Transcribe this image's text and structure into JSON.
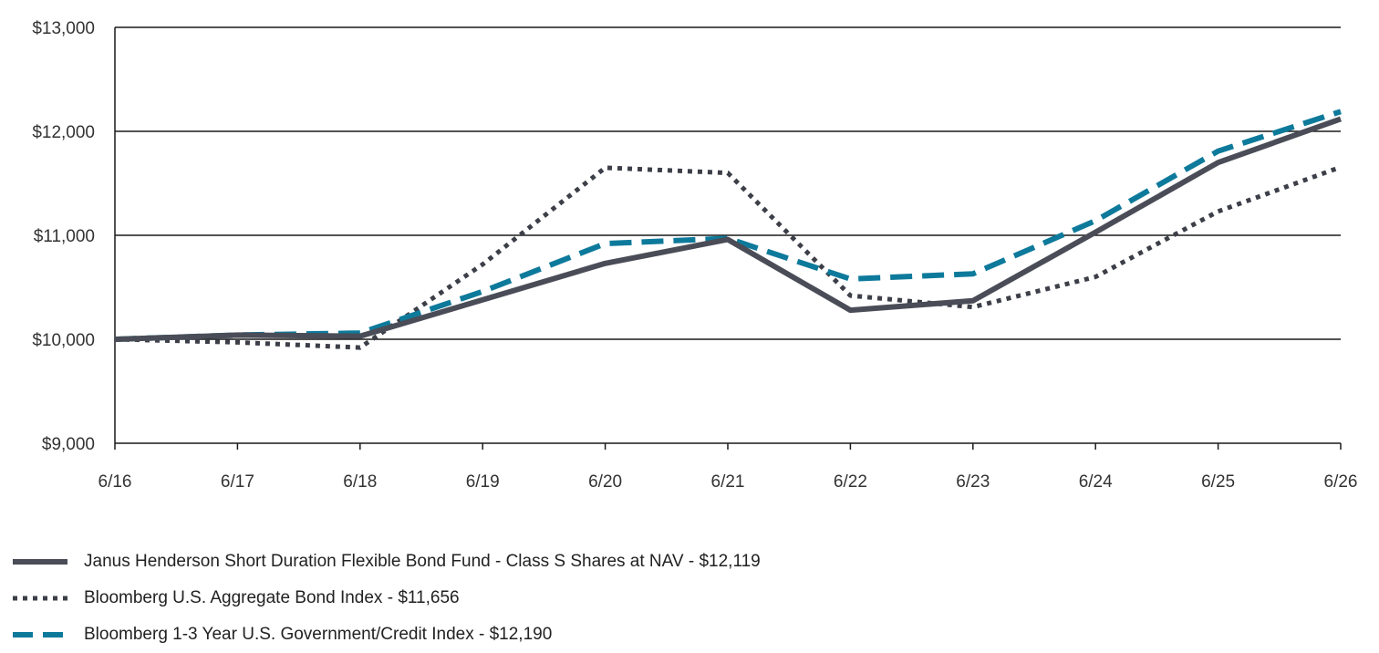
{
  "chart_data": {
    "type": "line",
    "title": "",
    "xlabel": "",
    "ylabel": "",
    "categories": [
      "6/16",
      "6/17",
      "6/18",
      "6/19",
      "6/20",
      "6/21",
      "6/22",
      "6/23",
      "6/24",
      "6/25",
      "6/26"
    ],
    "y_ticks": [
      "$9,000",
      "$10,000",
      "$11,000",
      "$12,000",
      "$13,000"
    ],
    "y_tick_values": [
      9000,
      10000,
      11000,
      12000,
      13000
    ],
    "ylim": [
      9000,
      13000
    ],
    "grid": "horizontal",
    "legend_position": "bottom-left",
    "series": [
      {
        "name": "Janus Henderson Short Duration Flexible Bond Fund - Class S Shares at NAV - $12,119",
        "style": "solid",
        "color": "#4a4d57",
        "values": [
          10000,
          10040,
          10030,
          10380,
          10730,
          10960,
          10280,
          10370,
          11030,
          11700,
          12119
        ]
      },
      {
        "name": "Bloomberg U.S. Aggregate Bond Index - $11,656",
        "style": "dotted",
        "color": "#3d3f48",
        "values": [
          10000,
          9970,
          9920,
          10720,
          11650,
          11600,
          10420,
          10310,
          10600,
          11230,
          11656
        ]
      },
      {
        "name": "Bloomberg 1-3 Year U.S. Government/Credit Index - $12,190",
        "style": "dashed",
        "color": "#0e7a9b",
        "values": [
          10000,
          10040,
          10060,
          10460,
          10920,
          10970,
          10580,
          10630,
          11140,
          11810,
          12190
        ]
      }
    ]
  }
}
